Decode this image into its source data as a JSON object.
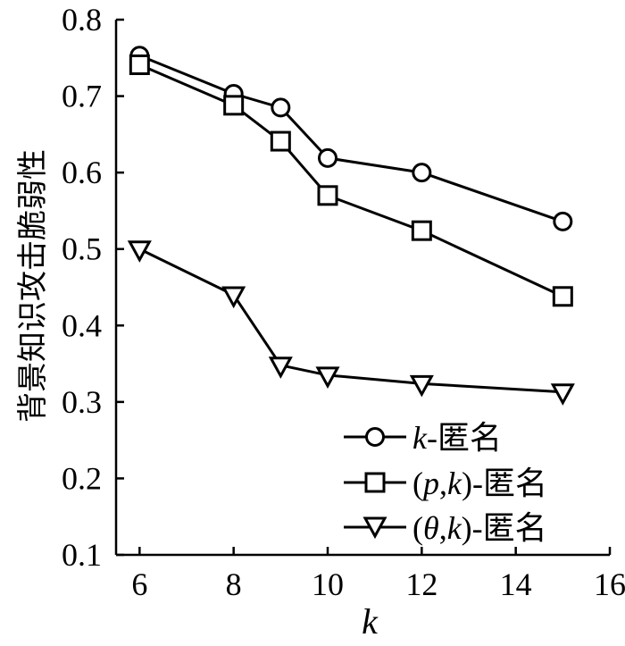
{
  "chart_data": {
    "type": "line",
    "xlabel": "k",
    "ylabel": "背景知识攻击脆弱性",
    "xlim": [
      5.5,
      16
    ],
    "ylim": [
      0.1,
      0.8
    ],
    "xticks": [
      "6",
      "8",
      "10",
      "12",
      "14",
      "16"
    ],
    "yticks": [
      "0.1",
      "0.2",
      "0.3",
      "0.4",
      "0.5",
      "0.6",
      "0.7",
      "0.8"
    ],
    "legend_position": "bottom-right",
    "series": [
      {
        "name": "k-匿名",
        "name_italic": "k",
        "name_rest": "-匿名",
        "marker": "circle",
        "x": [
          6,
          8,
          9,
          10,
          12,
          15
        ],
        "values": [
          0.753,
          0.703,
          0.685,
          0.619,
          0.6,
          0.536
        ]
      },
      {
        "name": "(p,k)-匿名",
        "name_open": "(",
        "name_p": "p",
        "name_comma": ",",
        "name_k": "k",
        "name_close": ")-匿名",
        "marker": "square",
        "x": [
          6,
          8,
          9,
          10,
          12,
          15
        ],
        "values": [
          0.741,
          0.688,
          0.641,
          0.57,
          0.524,
          0.438
        ]
      },
      {
        "name": "(θ,k)-匿名",
        "name_open": "(",
        "name_p": "θ",
        "name_comma": ",",
        "name_k": "k",
        "name_close": ")-匿名",
        "marker": "triangle-down",
        "x": [
          6,
          8,
          9,
          10,
          12,
          15
        ],
        "values": [
          0.5,
          0.44,
          0.348,
          0.335,
          0.324,
          0.313
        ]
      }
    ]
  }
}
